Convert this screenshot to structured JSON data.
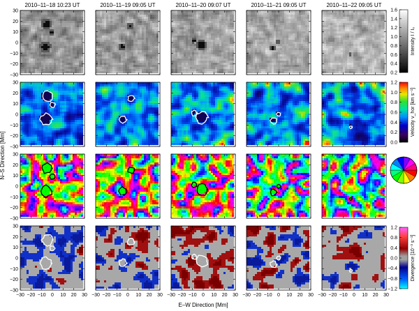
{
  "figure": {
    "columns": [
      {
        "date_label": "2010–11–18  10:23 UT"
      },
      {
        "date_label": "2010–11–19  09:05 UT"
      },
      {
        "date_label": "2010–11–20  09:07 UT"
      },
      {
        "date_label": "2010–11–21  09:05 UT"
      },
      {
        "date_label": "2010–11–22  09:05 UT"
      }
    ],
    "x_axis": {
      "title": "E–W Direction  [Mm]",
      "tick_labels": [
        "−30",
        "−20",
        "−10",
        "0",
        "10",
        "20",
        "30"
      ],
      "range": [
        -30,
        30
      ]
    },
    "y_axis": {
      "title": "N–S Direction  [Mm]",
      "tick_labels": [
        "30",
        "20",
        "10",
        "0",
        "−10",
        "−20",
        "−30"
      ],
      "range": [
        -30,
        30
      ]
    },
    "rows": [
      {
        "id": "intensity",
        "colorbar_label": "Intensity   I / I₀",
        "colorbar_ticks": [
          "1.6",
          "1.4",
          "1.2",
          "1.0",
          "0.8",
          "0.6",
          "0.4",
          "0.2"
        ],
        "range": [
          0.2,
          1.6
        ]
      },
      {
        "id": "velocity",
        "colorbar_label": "Velocity  v_hor  [km s⁻¹]",
        "colorbar_ticks": [
          "1.2",
          "1.0",
          "0.8",
          "0.6",
          "0.4",
          "0.2",
          "0.0"
        ],
        "range": [
          0.0,
          1.2
        ]
      },
      {
        "id": "azimuth",
        "colorbar_label": "",
        "colorbar_ticks": []
      },
      {
        "id": "divergence",
        "colorbar_label": "Divergence  [10⁻³ s⁻¹]",
        "colorbar_ticks": [
          "1.2",
          "0.8",
          "0.4",
          "0.0",
          "−0.4",
          "−0.8",
          "−1.2"
        ],
        "range": [
          -1.2,
          1.2
        ]
      }
    ]
  }
}
